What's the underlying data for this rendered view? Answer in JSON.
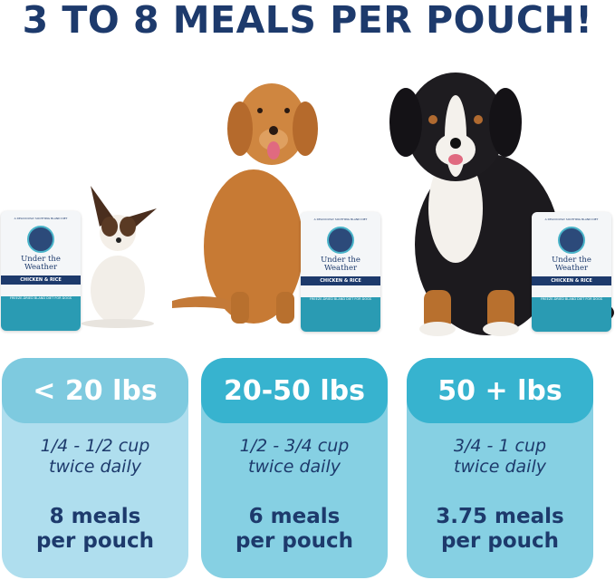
{
  "headline": "3 TO 8 MEALS PER POUCH!",
  "product": {
    "tagline": "A DELICIOUSLY SOOTHING BLAND DIET",
    "brand": [
      "Under the",
      "Weather"
    ],
    "flavor": "CHICKEN & RICE",
    "subtitle": "FREEZE-DRIED BLAND DIET FOR DOGS"
  },
  "colors": {
    "navy": "#1d3a6c",
    "light_header": "#7ecadf",
    "light_body": "#afdeee",
    "teal_header": "#37b3cf",
    "teal_body": "#86d0e3"
  },
  "cards": [
    {
      "weight": "< 20 lbs",
      "dose": [
        "1/4 - 1/2 cup",
        "twice daily"
      ],
      "meals": [
        "8 meals",
        "per pouch"
      ]
    },
    {
      "weight": "20-50 lbs",
      "dose": [
        "1/2 - 3/4 cup",
        "twice daily"
      ],
      "meals": [
        "6 meals",
        "per pouch"
      ]
    },
    {
      "weight": "50 + lbs",
      "dose": [
        "3/4 - 1 cup",
        "twice daily"
      ],
      "meals": [
        "3.75 meals",
        "per pouch"
      ]
    }
  ]
}
